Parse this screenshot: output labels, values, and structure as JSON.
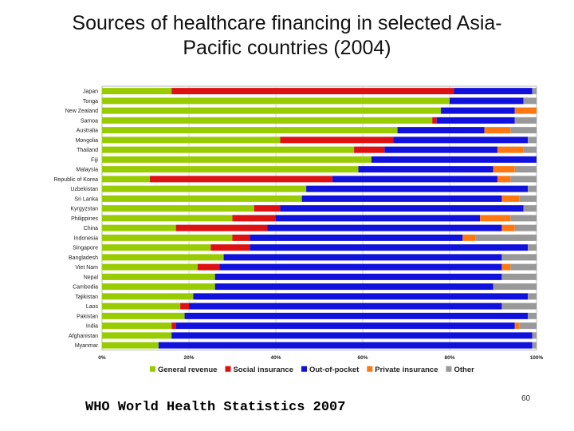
{
  "title_line1": "Sources of healthcare financing in selected Asia-",
  "title_line2": "Pacific countries (2004)",
  "source": "WHO World Health Statistics 2007",
  "page_number": "60",
  "chart_data": {
    "type": "bar",
    "orientation": "horizontal",
    "stacked": true,
    "xlim": [
      0,
      100
    ],
    "x_ticks": [
      "0%",
      "20%",
      "40%",
      "60%",
      "80%",
      "100%"
    ],
    "grid": true,
    "legend_position": "bottom",
    "categories": [
      "Japan",
      "Tonga",
      "New Zealand",
      "Samoa",
      "Australia",
      "Mongolia",
      "Thailand",
      "Fiji",
      "Malaysia",
      "Republic of Korea",
      "Uzbekistan",
      "Sri Lanka",
      "Kyrgyzstan",
      "Philippines",
      "China",
      "Indonesia",
      "Singapore",
      "Bangladesh",
      "Viet Nam",
      "Nepal",
      "Cambodia",
      "Tajikistan",
      "Laos",
      "Pakistan",
      "India",
      "Afghanistan",
      "Myanmar"
    ],
    "series": [
      {
        "name": "General revenue",
        "color": "#99cc00",
        "values": [
          16,
          80,
          78,
          76,
          68,
          41,
          58,
          62,
          59,
          11,
          47,
          46,
          35,
          30,
          17,
          30,
          25,
          28,
          22,
          26,
          26,
          21,
          18,
          19,
          16,
          16,
          13
        ]
      },
      {
        "name": "Social insurance",
        "color": "#dd1111",
        "values": [
          65,
          0,
          0,
          1,
          0,
          26,
          7,
          0,
          0,
          42,
          0,
          0,
          6,
          10,
          21,
          4,
          9,
          0,
          5,
          0,
          0,
          0,
          2,
          0,
          1,
          0,
          0
        ]
      },
      {
        "name": "Out-of-pocket",
        "color": "#1111dd",
        "values": [
          18,
          17,
          17,
          18,
          20,
          31,
          26,
          38,
          31,
          38,
          51,
          46,
          56,
          47,
          54,
          49,
          64,
          64,
          65,
          66,
          64,
          77,
          72,
          79,
          78,
          83,
          86
        ]
      },
      {
        "name": "Private insurance",
        "color": "#ff7711",
        "values": [
          0,
          0,
          5,
          0,
          6,
          0,
          6,
          0,
          5,
          3,
          0,
          4,
          0,
          7,
          3,
          3,
          0,
          0,
          2,
          0,
          0,
          0,
          0,
          0,
          1,
          0,
          0
        ]
      },
      {
        "name": "Other",
        "color": "#999999",
        "values": [
          1,
          3,
          0,
          5,
          6,
          2,
          3,
          0,
          5,
          6,
          2,
          4,
          3,
          6,
          5,
          14,
          2,
          8,
          6,
          8,
          10,
          2,
          8,
          2,
          4,
          1,
          1
        ]
      }
    ]
  }
}
